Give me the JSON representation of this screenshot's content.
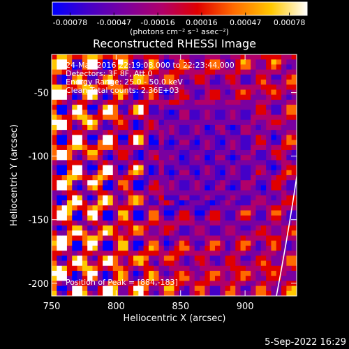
{
  "chart_data": {
    "type": "heatmap",
    "title": "Reconstructed RHESSI Image",
    "xlabel": "Heliocentric X (arcsec)",
    "ylabel": "Heliocentric Y (arcsec)",
    "xlim": [
      750,
      940
    ],
    "ylim": [
      -210,
      -20
    ],
    "xticks": [
      750,
      800,
      850,
      900
    ],
    "yticks": [
      -50,
      -100,
      -150,
      -200
    ],
    "colorbar": {
      "label": "(photons cm⁻² s⁻¹ asec⁻²)",
      "ticks": [
        "-0.00078",
        "-0.00047",
        "-0.00016",
        "0.00016",
        "0.00047",
        "0.00078"
      ],
      "min": -0.00078,
      "max": 0.00078,
      "colors": [
        "#0000ff",
        "#4400c8",
        "#7a00a0",
        "#b0006a",
        "#e00000",
        "#ff6a00",
        "#ffc800",
        "#ffffff"
      ]
    },
    "annotations": [
      "24-May-2016 22:19:08.000 to 22:23:44.000",
      "Detectors: 3F 8F, Att 0",
      "Energy Range: 25.0 - 50.0 keV",
      "Clean     Total counts: 2.36E+03"
    ],
    "peak_label": "Position of Peak = [884,-183]",
    "peak_position": [
      884,
      -183
    ]
  },
  "footer": {
    "date": "5-Sep-2022 16:29"
  }
}
